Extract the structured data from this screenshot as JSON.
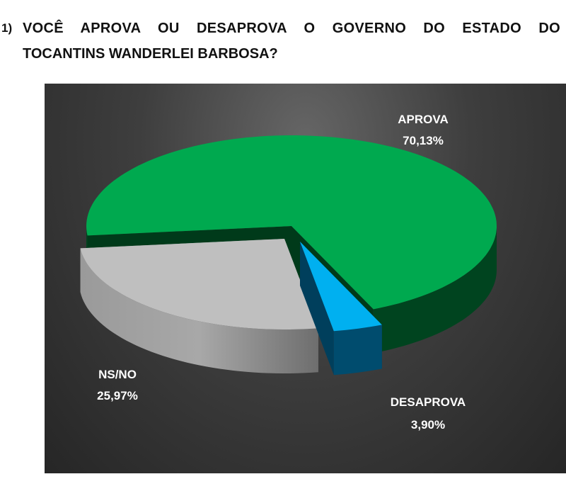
{
  "title": {
    "number": "1)",
    "line1": "VOCÊ APROVA OU DESAPROVA O GOVERNO DO ESTADO DO",
    "line2": "TOCANTINS WANDERLEI BARBOSA?"
  },
  "chart_data": {
    "type": "pie",
    "style": "3d-exploded",
    "title": "VOCÊ APROVA OU DESAPROVA O GOVERNO DO ESTADO DO TOCANTINS WANDERLEI BARBOSA?",
    "slices": [
      {
        "label": "APROVA",
        "value": 70.13,
        "value_label": "70,13%",
        "color": "#00A94F"
      },
      {
        "label": "DESAPROVA",
        "value": 3.9,
        "value_label": "3,90%",
        "color": "#00B0F0"
      },
      {
        "label": "NS/NO",
        "value": 25.97,
        "value_label": "25,97%",
        "color": "#BFBFBF"
      }
    ],
    "legend": "none",
    "background": "#333333"
  }
}
